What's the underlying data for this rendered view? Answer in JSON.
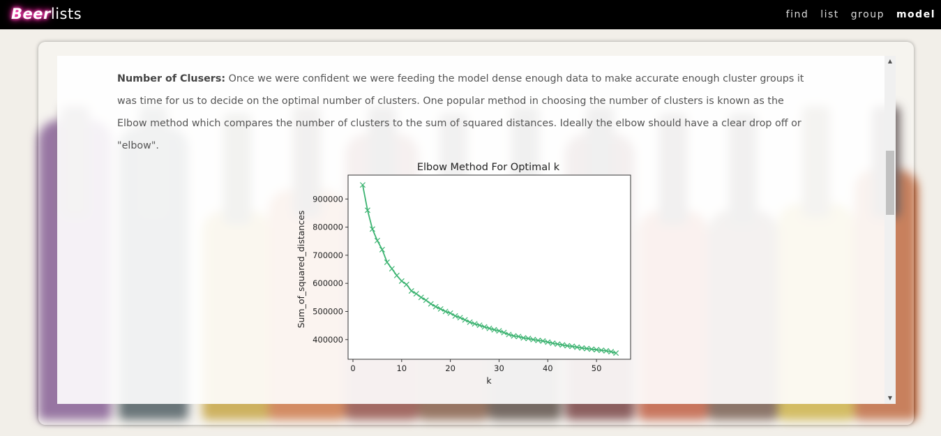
{
  "brand": {
    "bold": "Beer",
    "rest": "lists"
  },
  "nav": {
    "find": "find",
    "list": "list",
    "group": "group",
    "model": "model"
  },
  "section": {
    "heading": "Number of Clusers:",
    "text": " Once we were confident we were feeding the model dense enough data to make accurate enough cluster groups it was time for us to decide on the optimal number of clusters. One popular method in choosing the number of clusters is known as the Elbow method which compares the number of clusters to the sum of squared distances. Ideally the elbow should have a clear drop off or \"elbow\"."
  },
  "colors": {
    "line": "#3cb371",
    "brand_glow": "#ff3fb4",
    "navbar": "#000000"
  },
  "scrollbar": {
    "up_icon": "▲",
    "down_icon": "▼"
  },
  "chart_data": {
    "type": "line",
    "title": "Elbow Method For Optimal k",
    "xlabel": "k",
    "ylabel": "Sum_of_squared_distances",
    "xlim": [
      -1,
      57
    ],
    "ylim": [
      330000,
      985000
    ],
    "xticks": [
      0,
      10,
      20,
      30,
      40,
      50
    ],
    "yticks": [
      400000,
      500000,
      600000,
      700000,
      800000,
      900000
    ],
    "marker": "x",
    "series": [
      {
        "x": [
          2,
          3,
          4,
          5,
          6,
          7,
          8,
          9,
          10,
          11,
          12,
          13,
          14,
          15,
          16,
          17,
          18,
          19,
          20,
          21,
          22,
          23,
          24,
          25,
          26,
          27,
          28,
          29,
          30,
          31,
          32,
          33,
          34,
          35,
          36,
          37,
          38,
          39,
          40,
          41,
          42,
          43,
          44,
          45,
          46,
          47,
          48,
          49,
          50,
          51,
          52,
          53,
          54
        ],
        "values": [
          950000,
          860000,
          793000,
          752000,
          720000,
          675000,
          652000,
          628000,
          608000,
          596000,
          573000,
          563000,
          550000,
          540000,
          527000,
          517000,
          509000,
          500000,
          494000,
          484000,
          478000,
          470000,
          462000,
          456000,
          451000,
          445000,
          440000,
          435000,
          431000,
          425000,
          418000,
          413000,
          411000,
          406000,
          404000,
          400000,
          397000,
          395000,
          391000,
          387000,
          384000,
          381000,
          378000,
          376000,
          373000,
          370000,
          368000,
          366000,
          364000,
          362000,
          360000,
          357000,
          352000
        ]
      }
    ]
  }
}
